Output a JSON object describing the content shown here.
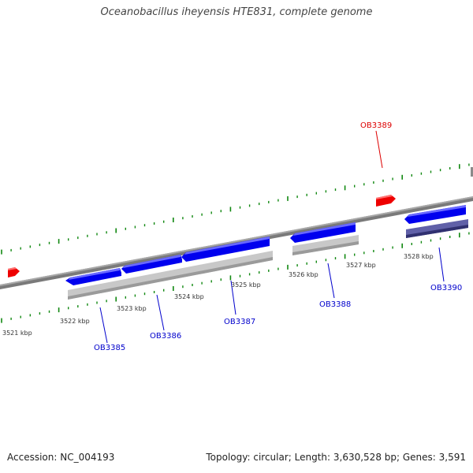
{
  "title": "Oceanobacillus iheyensis HTE831, complete genome",
  "footer": {
    "accession": "Accession: NC_004193",
    "summary": "Topology: circular; Length: 3,630,528 bp; Genes: 3,591"
  },
  "colors": {
    "forward_gene": "#0000ee",
    "reverse_gene": "#ee0000",
    "cds_shadow": "#c0c0c0",
    "cds_shadow_dark": "#505090",
    "tick": "#118811",
    "backbone": "#777777",
    "label_forward": "#0000cc",
    "label_reverse": "#dd0000"
  },
  "scale_labels": [
    "3521 kbp",
    "3522 kbp",
    "3523 kbp",
    "3524 kbp",
    "3525 kbp",
    "3526 kbp",
    "3527 kbp",
    "3528 kbp"
  ],
  "gene_labels": [
    {
      "id": "OB3385",
      "strand": "forward"
    },
    {
      "id": "OB3386",
      "strand": "forward"
    },
    {
      "id": "OB3387",
      "strand": "forward"
    },
    {
      "id": "OB3388",
      "strand": "forward"
    },
    {
      "id": "OB3389",
      "strand": "reverse"
    },
    {
      "id": "OB3390",
      "strand": "forward"
    }
  ]
}
